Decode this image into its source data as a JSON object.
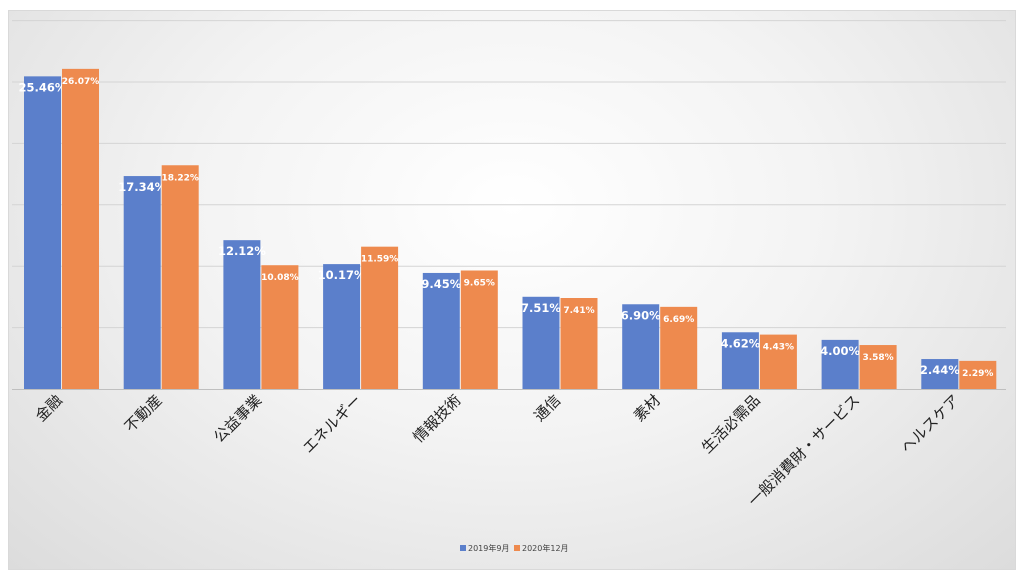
{
  "chart_data": {
    "type": "bar",
    "title": "",
    "xlabel": "",
    "ylabel": "",
    "ylim": [
      0,
      30
    ],
    "grid": true,
    "legend_position": "bottom",
    "categories": [
      "金融",
      "不動産",
      "公益事業",
      "エネルギー",
      "情報技術",
      "通信",
      "素材",
      "生活必需品",
      "一般消費財・サービス",
      "ヘルスケア"
    ],
    "series": [
      {
        "name": "2019年9月",
        "color": "#5b7fcb",
        "values": [
          25.46,
          17.34,
          12.12,
          10.17,
          9.45,
          7.51,
          6.9,
          4.62,
          4.0,
          2.44
        ],
        "labels": [
          "25.46%",
          "17.34%",
          "12.12%",
          "10.17%",
          "9.45%",
          "7.51%",
          "6.90%",
          "4.62%",
          "4.00%",
          "2.44%"
        ]
      },
      {
        "name": "2020年12月",
        "color": "#ee8a4e",
        "values": [
          26.07,
          18.22,
          10.08,
          11.59,
          9.65,
          7.41,
          6.69,
          4.43,
          3.58,
          2.29
        ],
        "labels": [
          "26.07%",
          "18.22%",
          "10.08%",
          "11.59%",
          "9.65%",
          "7.41%",
          "6.69%",
          "4.43%",
          "3.58%",
          "2.29%"
        ]
      }
    ]
  }
}
